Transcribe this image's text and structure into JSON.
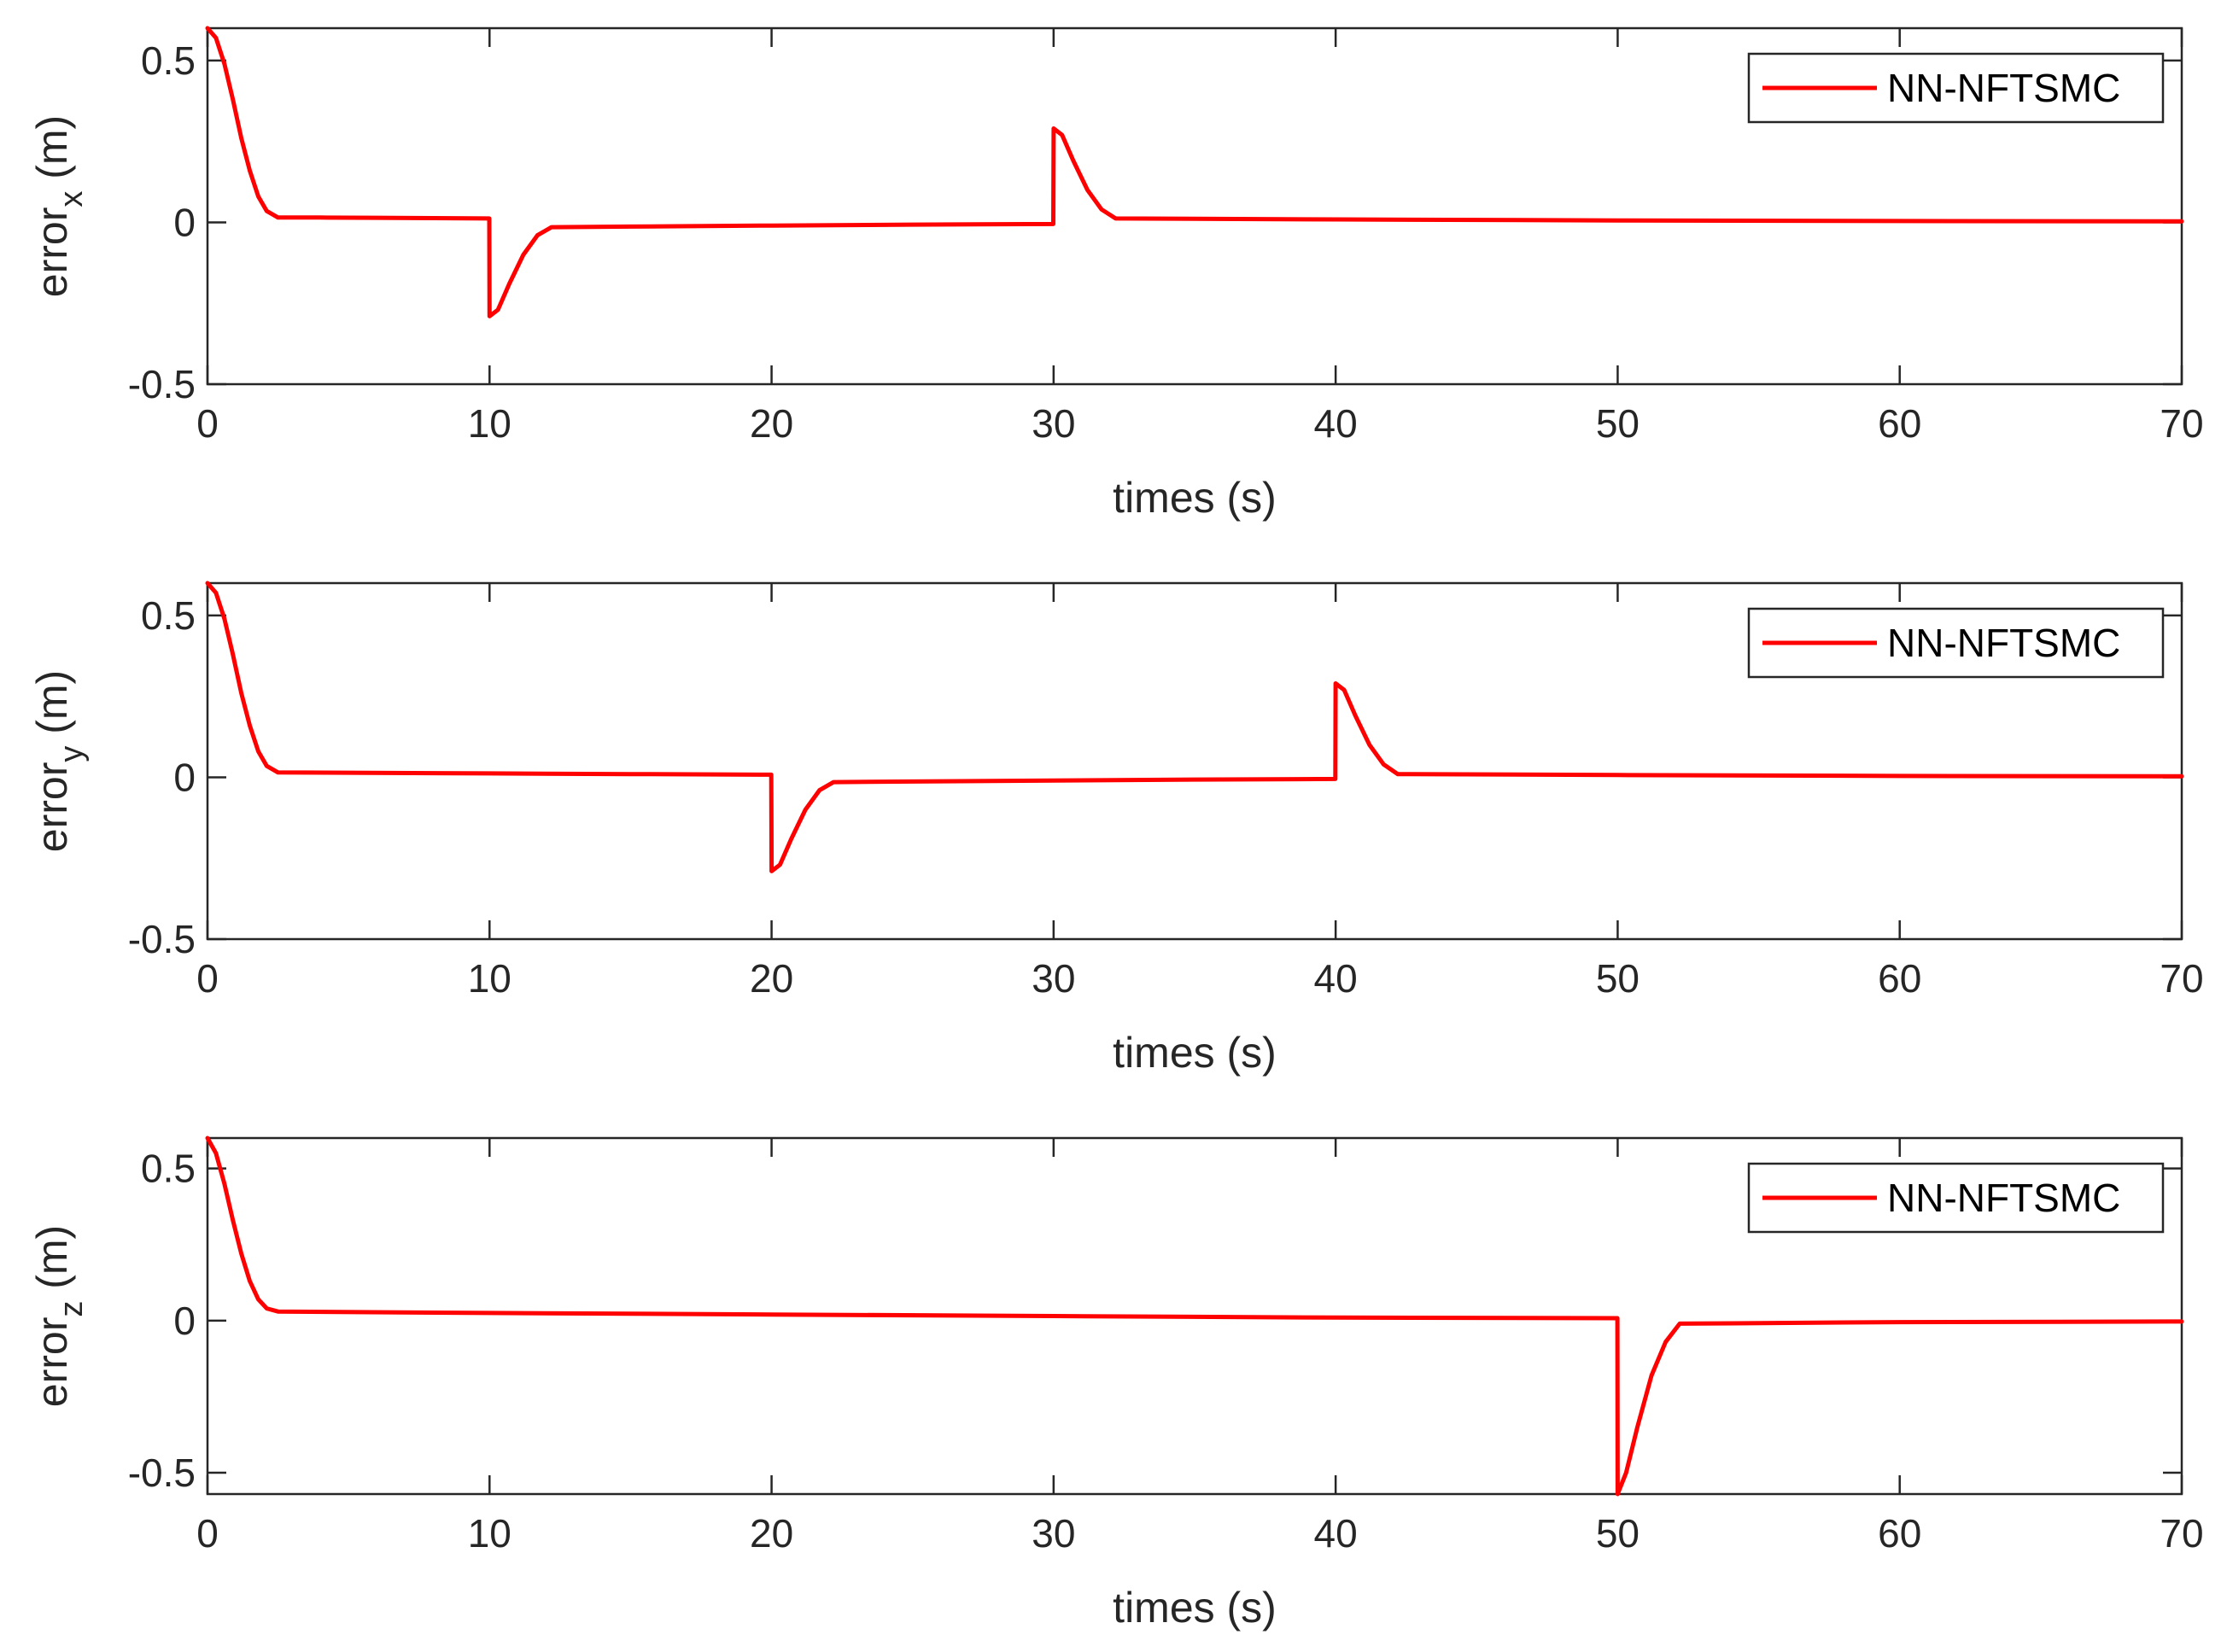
{
  "chart_data": [
    {
      "type": "line",
      "xlabel": "times (s)",
      "ylabel": {
        "base": "error",
        "sub": "x",
        "unit": "(m)"
      },
      "xlim": [
        0,
        70
      ],
      "ylim": [
        -0.5,
        0.6
      ],
      "xticks": [
        0,
        10,
        20,
        30,
        40,
        50,
        60,
        70
      ],
      "xtick_labels": [
        "0",
        "10",
        "20",
        "30",
        "40",
        "50",
        "60",
        "70"
      ],
      "yticks": [
        -0.5,
        0,
        0.5
      ],
      "ytick_labels": [
        "-0.5",
        "0",
        "0.5"
      ],
      "grid": false,
      "legend_position": "top-right",
      "series": [
        {
          "name": "NN-NFTSMC",
          "color": "#ff0000",
          "x": [
            0,
            0.3,
            0.6,
            0.9,
            1.2,
            1.5,
            1.8,
            2.1,
            2.5,
            4,
            6,
            8,
            9.99,
            10.0,
            10.3,
            10.7,
            11.2,
            11.7,
            12.2,
            15,
            20,
            25,
            29.99,
            30.0,
            30.3,
            30.7,
            31.2,
            31.7,
            32.2,
            40,
            50,
            60,
            70
          ],
          "y": [
            0.6,
            0.57,
            0.49,
            0.38,
            0.26,
            0.16,
            0.08,
            0.035,
            0.015,
            0.015,
            0.014,
            0.013,
            0.012,
            -0.29,
            -0.27,
            -0.19,
            -0.1,
            -0.04,
            -0.015,
            -0.013,
            -0.01,
            -0.007,
            -0.005,
            0.29,
            0.27,
            0.19,
            0.1,
            0.04,
            0.012,
            0.009,
            0.006,
            0.004,
            0.003
          ]
        }
      ]
    },
    {
      "type": "line",
      "xlabel": "times (s)",
      "ylabel": {
        "base": "error",
        "sub": "y",
        "unit": "(m)"
      },
      "xlim": [
        0,
        70
      ],
      "ylim": [
        -0.5,
        0.6
      ],
      "xticks": [
        0,
        10,
        20,
        30,
        40,
        50,
        60,
        70
      ],
      "xtick_labels": [
        "0",
        "10",
        "20",
        "30",
        "40",
        "50",
        "60",
        "70"
      ],
      "yticks": [
        -0.5,
        0,
        0.5
      ],
      "ytick_labels": [
        "-0.5",
        "0",
        "0.5"
      ],
      "grid": false,
      "legend_position": "top-right",
      "series": [
        {
          "name": "NN-NFTSMC",
          "color": "#ff0000",
          "x": [
            0,
            0.3,
            0.6,
            0.9,
            1.2,
            1.5,
            1.8,
            2.1,
            2.5,
            5,
            10,
            15,
            19.99,
            20.0,
            20.3,
            20.7,
            21.2,
            21.7,
            22.2,
            25,
            30,
            35,
            39.99,
            40.0,
            40.3,
            40.7,
            41.2,
            41.7,
            42.2,
            50,
            60,
            70
          ],
          "y": [
            0.6,
            0.57,
            0.49,
            0.38,
            0.26,
            0.16,
            0.08,
            0.035,
            0.015,
            0.014,
            0.012,
            0.01,
            0.008,
            -0.29,
            -0.27,
            -0.19,
            -0.1,
            -0.04,
            -0.015,
            -0.013,
            -0.01,
            -0.007,
            -0.005,
            0.29,
            0.27,
            0.19,
            0.1,
            0.04,
            0.01,
            0.007,
            0.004,
            0.003
          ]
        }
      ]
    },
    {
      "type": "line",
      "xlabel": "times (s)",
      "ylabel": {
        "base": "error",
        "sub": "z",
        "unit": "(m)"
      },
      "xlim": [
        0,
        70
      ],
      "ylim": [
        -0.57,
        0.6
      ],
      "xticks": [
        0,
        10,
        20,
        30,
        40,
        50,
        60,
        70
      ],
      "xtick_labels": [
        "0",
        "10",
        "20",
        "30",
        "40",
        "50",
        "60",
        "70"
      ],
      "yticks": [
        -0.5,
        0,
        0.5
      ],
      "ytick_labels": [
        "-0.5",
        "0",
        "0.5"
      ],
      "grid": false,
      "legend_position": "top-right",
      "series": [
        {
          "name": "NN-NFTSMC",
          "color": "#ff0000",
          "x": [
            0,
            0.3,
            0.6,
            0.9,
            1.2,
            1.5,
            1.8,
            2.1,
            2.5,
            10,
            20,
            30,
            40,
            49.99,
            50.0,
            50.3,
            50.7,
            51.2,
            51.7,
            52.2,
            60,
            70
          ],
          "y": [
            0.6,
            0.55,
            0.45,
            0.33,
            0.22,
            0.13,
            0.07,
            0.04,
            0.03,
            0.025,
            0.02,
            0.015,
            0.01,
            0.008,
            -0.57,
            -0.5,
            -0.35,
            -0.18,
            -0.07,
            -0.01,
            -0.005,
            -0.003
          ]
        }
      ]
    }
  ]
}
